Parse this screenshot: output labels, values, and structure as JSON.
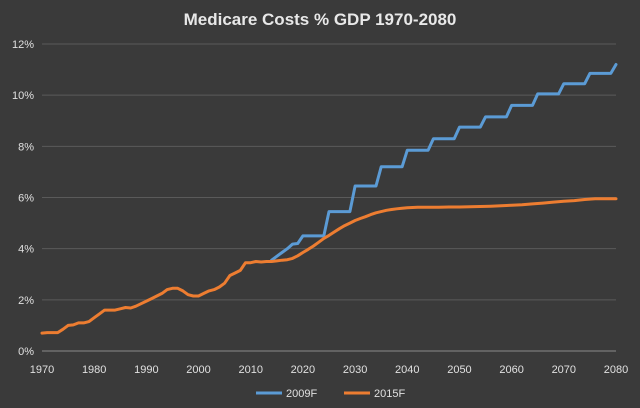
{
  "chart_data": {
    "type": "line",
    "title": "Medicare Costs % GDP 1970-2080",
    "xlabel": "",
    "ylabel": "",
    "xlim": [
      1970,
      2080
    ],
    "ylim": [
      0,
      12
    ],
    "x_ticks": [
      1970,
      1980,
      1990,
      2000,
      2010,
      2020,
      2030,
      2040,
      2050,
      2060,
      2070,
      2080
    ],
    "y_ticks": [
      {
        "value": 0,
        "label": "0%"
      },
      {
        "value": 2,
        "label": "2%"
      },
      {
        "value": 4,
        "label": "4%"
      },
      {
        "value": 6,
        "label": "6%"
      },
      {
        "value": 8,
        "label": "8%"
      },
      {
        "value": 10,
        "label": "10%"
      },
      {
        "value": 12,
        "label": "12%"
      }
    ],
    "grid": true,
    "legend_position": "bottom",
    "series": [
      {
        "name": "2009F",
        "color": "#5b9bd5",
        "points": [
          [
            2014,
            3.55
          ],
          [
            2015,
            3.7
          ],
          [
            2016,
            3.85
          ],
          [
            2017,
            4.0
          ],
          [
            2018,
            4.18
          ],
          [
            2019,
            4.2
          ],
          [
            2020,
            4.5
          ],
          [
            2021,
            4.5
          ],
          [
            2022,
            4.5
          ],
          [
            2023,
            4.5
          ],
          [
            2024,
            4.5
          ],
          [
            2025,
            5.45
          ],
          [
            2026,
            5.45
          ],
          [
            2027,
            5.45
          ],
          [
            2028,
            5.45
          ],
          [
            2029,
            5.45
          ],
          [
            2030,
            6.45
          ],
          [
            2031,
            6.45
          ],
          [
            2032,
            6.45
          ],
          [
            2033,
            6.45
          ],
          [
            2034,
            6.45
          ],
          [
            2035,
            7.2
          ],
          [
            2036,
            7.2
          ],
          [
            2037,
            7.2
          ],
          [
            2038,
            7.2
          ],
          [
            2039,
            7.2
          ],
          [
            2040,
            7.85
          ],
          [
            2041,
            7.85
          ],
          [
            2042,
            7.85
          ],
          [
            2043,
            7.85
          ],
          [
            2044,
            7.85
          ],
          [
            2045,
            8.3
          ],
          [
            2046,
            8.3
          ],
          [
            2047,
            8.3
          ],
          [
            2048,
            8.3
          ],
          [
            2049,
            8.3
          ],
          [
            2050,
            8.75
          ],
          [
            2051,
            8.75
          ],
          [
            2052,
            8.75
          ],
          [
            2053,
            8.75
          ],
          [
            2054,
            8.75
          ],
          [
            2055,
            9.15
          ],
          [
            2056,
            9.15
          ],
          [
            2057,
            9.15
          ],
          [
            2058,
            9.15
          ],
          [
            2059,
            9.15
          ],
          [
            2060,
            9.6
          ],
          [
            2061,
            9.6
          ],
          [
            2062,
            9.6
          ],
          [
            2063,
            9.6
          ],
          [
            2064,
            9.6
          ],
          [
            2065,
            10.05
          ],
          [
            2066,
            10.05
          ],
          [
            2067,
            10.05
          ],
          [
            2068,
            10.05
          ],
          [
            2069,
            10.05
          ],
          [
            2070,
            10.45
          ],
          [
            2071,
            10.45
          ],
          [
            2072,
            10.45
          ],
          [
            2073,
            10.45
          ],
          [
            2074,
            10.45
          ],
          [
            2075,
            10.85
          ],
          [
            2076,
            10.85
          ],
          [
            2077,
            10.85
          ],
          [
            2078,
            10.85
          ],
          [
            2079,
            10.85
          ],
          [
            2080,
            11.2
          ]
        ]
      },
      {
        "name": "2015F",
        "color": "#ed7d31",
        "points": [
          [
            1970,
            0.7
          ],
          [
            1971,
            0.72
          ],
          [
            1972,
            0.72
          ],
          [
            1973,
            0.72
          ],
          [
            1974,
            0.85
          ],
          [
            1975,
            1.0
          ],
          [
            1976,
            1.02
          ],
          [
            1977,
            1.1
          ],
          [
            1978,
            1.1
          ],
          [
            1979,
            1.15
          ],
          [
            1980,
            1.3
          ],
          [
            1981,
            1.45
          ],
          [
            1982,
            1.6
          ],
          [
            1983,
            1.6
          ],
          [
            1984,
            1.6
          ],
          [
            1985,
            1.65
          ],
          [
            1986,
            1.7
          ],
          [
            1987,
            1.68
          ],
          [
            1988,
            1.75
          ],
          [
            1989,
            1.85
          ],
          [
            1990,
            1.95
          ],
          [
            1991,
            2.05
          ],
          [
            1992,
            2.15
          ],
          [
            1993,
            2.25
          ],
          [
            1994,
            2.4
          ],
          [
            1995,
            2.45
          ],
          [
            1996,
            2.45
          ],
          [
            1997,
            2.35
          ],
          [
            1998,
            2.2
          ],
          [
            1999,
            2.15
          ],
          [
            2000,
            2.15
          ],
          [
            2001,
            2.25
          ],
          [
            2002,
            2.35
          ],
          [
            2003,
            2.4
          ],
          [
            2004,
            2.5
          ],
          [
            2005,
            2.65
          ],
          [
            2006,
            2.95
          ],
          [
            2007,
            3.05
          ],
          [
            2008,
            3.15
          ],
          [
            2009,
            3.45
          ],
          [
            2010,
            3.45
          ],
          [
            2011,
            3.5
          ],
          [
            2012,
            3.48
          ],
          [
            2013,
            3.5
          ],
          [
            2014,
            3.5
          ],
          [
            2015,
            3.52
          ],
          [
            2016,
            3.55
          ],
          [
            2017,
            3.57
          ],
          [
            2018,
            3.62
          ],
          [
            2019,
            3.72
          ],
          [
            2020,
            3.85
          ],
          [
            2021,
            3.97
          ],
          [
            2022,
            4.1
          ],
          [
            2023,
            4.25
          ],
          [
            2024,
            4.4
          ],
          [
            2025,
            4.52
          ],
          [
            2026,
            4.65
          ],
          [
            2027,
            4.78
          ],
          [
            2028,
            4.9
          ],
          [
            2029,
            5.0
          ],
          [
            2030,
            5.1
          ],
          [
            2031,
            5.18
          ],
          [
            2032,
            5.25
          ],
          [
            2033,
            5.33
          ],
          [
            2034,
            5.4
          ],
          [
            2035,
            5.45
          ],
          [
            2036,
            5.5
          ],
          [
            2037,
            5.53
          ],
          [
            2038,
            5.56
          ],
          [
            2039,
            5.58
          ],
          [
            2040,
            5.6
          ],
          [
            2042,
            5.62
          ],
          [
            2044,
            5.62
          ],
          [
            2046,
            5.62
          ],
          [
            2048,
            5.63
          ],
          [
            2050,
            5.63
          ],
          [
            2052,
            5.64
          ],
          [
            2054,
            5.65
          ],
          [
            2056,
            5.66
          ],
          [
            2058,
            5.68
          ],
          [
            2060,
            5.7
          ],
          [
            2062,
            5.72
          ],
          [
            2064,
            5.75
          ],
          [
            2066,
            5.78
          ],
          [
            2068,
            5.82
          ],
          [
            2070,
            5.85
          ],
          [
            2072,
            5.88
          ],
          [
            2074,
            5.92
          ],
          [
            2076,
            5.95
          ],
          [
            2078,
            5.95
          ],
          [
            2080,
            5.95
          ]
        ]
      }
    ]
  }
}
